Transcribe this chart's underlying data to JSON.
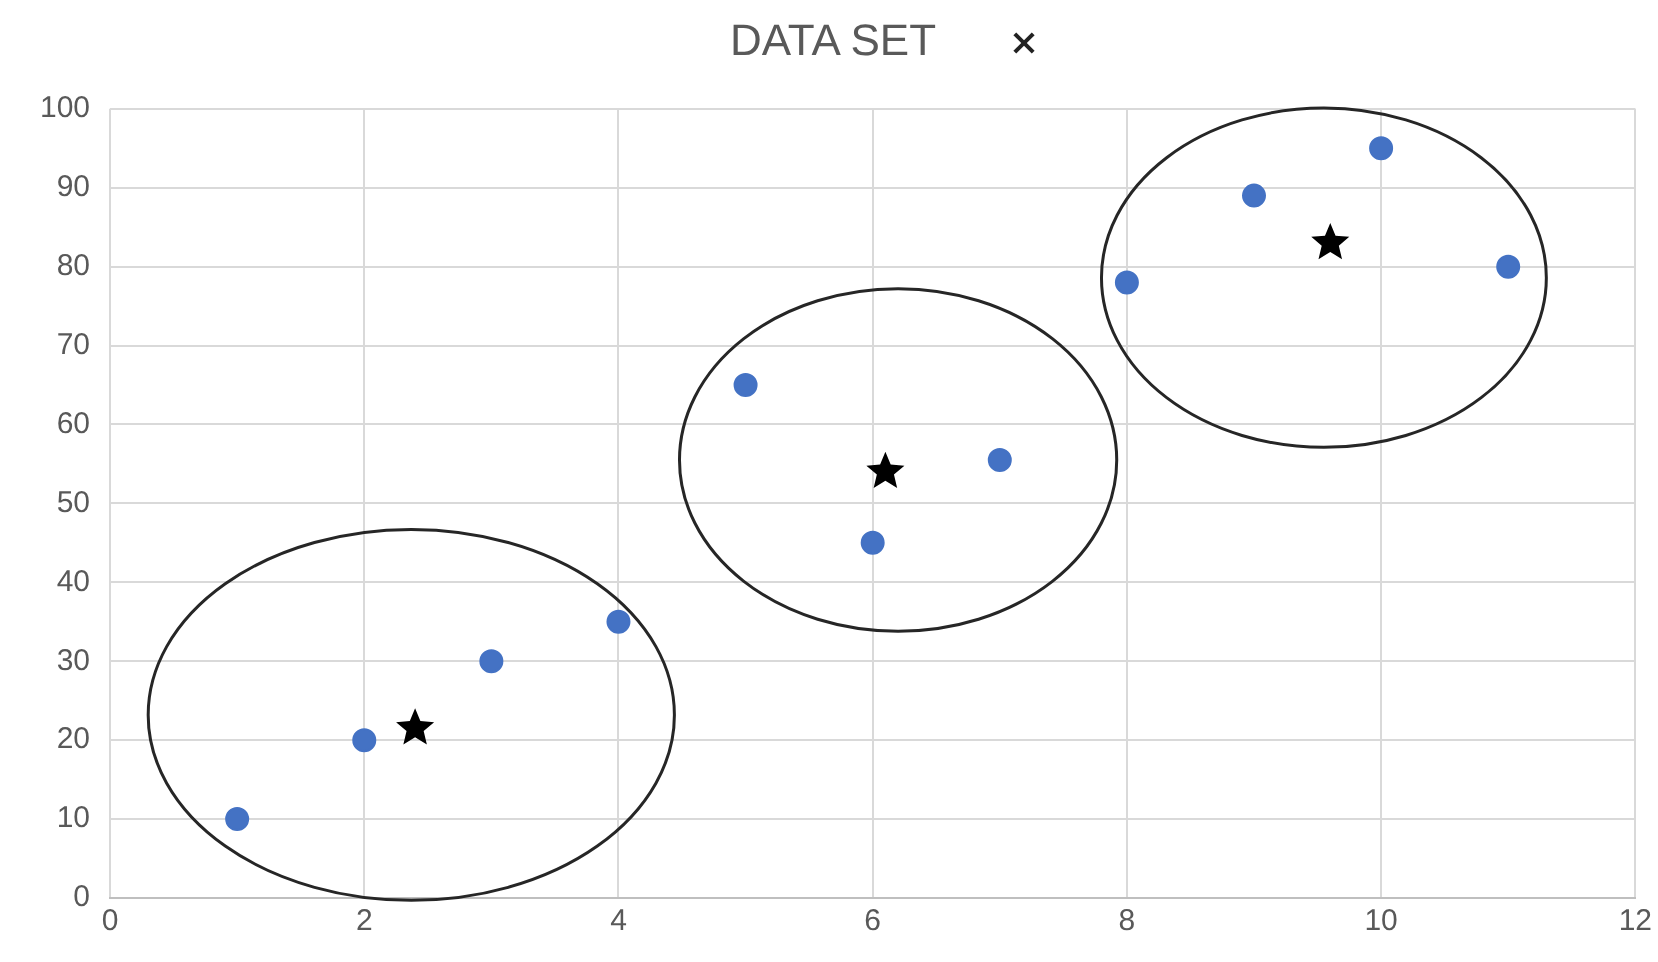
{
  "chart_data": {
    "type": "scatter",
    "title": "DATA SET",
    "xlim": [
      0,
      12
    ],
    "xticks": [
      0,
      2,
      4,
      6,
      8,
      10,
      12
    ],
    "ylim": [
      0,
      100
    ],
    "yticks": [
      0,
      10,
      20,
      30,
      40,
      50,
      60,
      70,
      80,
      90,
      100
    ],
    "grid": true,
    "legend": false,
    "series": [
      {
        "color": "#4472c4",
        "marker": "circle",
        "x": [
          1,
          2,
          3,
          4,
          5,
          6,
          7,
          8,
          9,
          10,
          11
        ],
        "values": [
          10,
          20,
          30,
          35,
          65,
          45,
          55.5,
          78,
          89,
          95,
          80
        ]
      },
      {
        "color": "#000000",
        "marker": "star",
        "x": [
          2.4,
          6.1,
          9.6
        ],
        "values": [
          21.5,
          54,
          83
        ]
      }
    ]
  }
}
